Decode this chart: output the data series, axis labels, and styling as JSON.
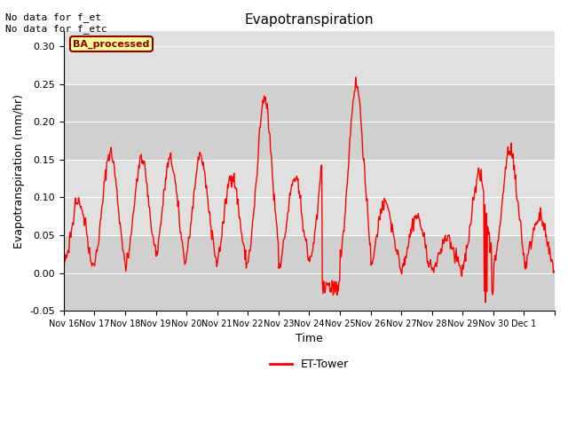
{
  "title": "Evapotranspiration",
  "ylabel": "Evapotranspiration (mm/hr)",
  "xlabel": "Time",
  "ylim": [
    -0.05,
    0.32
  ],
  "yticks": [
    -0.05,
    0.0,
    0.05,
    0.1,
    0.15,
    0.2,
    0.25,
    0.3
  ],
  "line_color": "#ff0000",
  "line_width": 1.0,
  "background_color": "#ffffff",
  "plot_bg_color": "#e8e8e8",
  "grid_color": "#ffffff",
  "legend_label": "ET-Tower",
  "annotation_text": "No data for f_et\nNo data for f_etc",
  "ba_label": "BA_processed",
  "ba_box_color": "#ffff99",
  "ba_box_edge_color": "#8b0000",
  "ba_text_color": "#8b0000",
  "n_days": 16,
  "x_tick_labels": [
    "Nov 16",
    "Nov 17",
    "Nov 18",
    "Nov 19",
    "Nov 20",
    "Nov 21",
    "Nov 22",
    "Nov 23",
    "Nov 24",
    "Nov 25",
    "Nov 26",
    "Nov 27",
    "Nov 28",
    "Nov 29",
    "Nov 30",
    "Dec 1"
  ],
  "daily_peaks": [
    0.1,
    0.165,
    0.155,
    0.155,
    0.16,
    0.135,
    0.235,
    0.13,
    0.17,
    0.255,
    0.1,
    0.08,
    0.05,
    0.135,
    0.17,
    0.08
  ],
  "band_colors": [
    "#d0d0d0",
    "#e0e0e0"
  ],
  "band_edges": [
    -0.05,
    0.05,
    0.15,
    0.25,
    0.35
  ]
}
